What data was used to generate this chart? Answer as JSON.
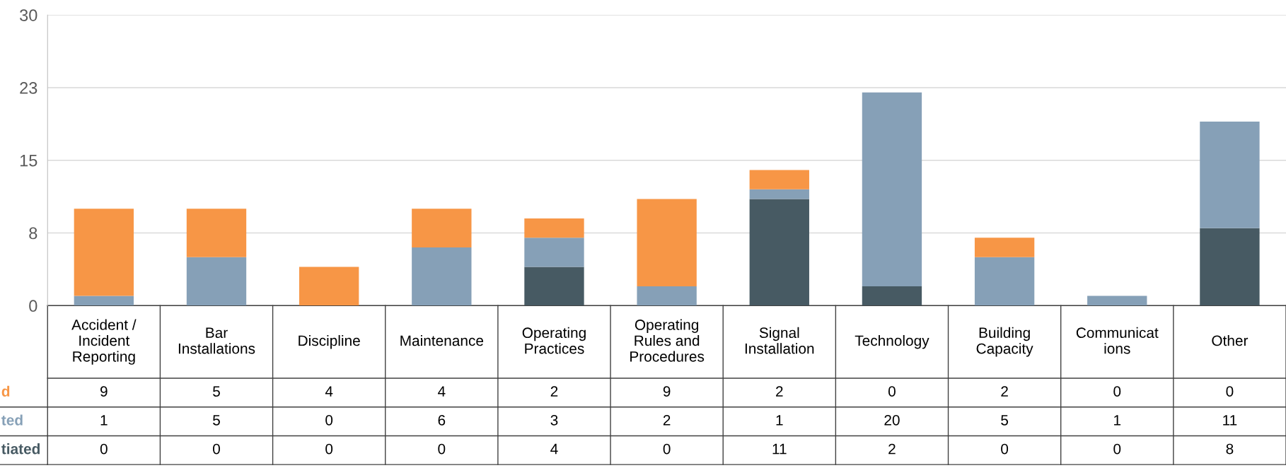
{
  "chart_data": {
    "type": "bar",
    "stacked": true,
    "data_labels": true,
    "grid": "y",
    "legend": false,
    "categories": [
      "Accident / Incident Reporting",
      "Bar Installations",
      "Discipline",
      "Maintenance",
      "Operating Practices",
      "Operating Rules and Procedures",
      "Signal Installation",
      "Technology",
      "Building Capacity",
      "Communicat ions",
      "Other"
    ],
    "series": [
      {
        "name": "tiated",
        "color": "#475a63",
        "values": [
          0,
          0,
          0,
          0,
          4,
          0,
          11,
          2,
          0,
          0,
          8
        ]
      },
      {
        "name": "ted",
        "color": "#86a0b7",
        "values": [
          1,
          5,
          0,
          6,
          3,
          2,
          1,
          20,
          5,
          1,
          11
        ]
      },
      {
        "name": "d",
        "color": "#f79646",
        "values": [
          9,
          5,
          4,
          4,
          2,
          9,
          2,
          0,
          2,
          0,
          0
        ]
      }
    ],
    "ylim": [
      0,
      30
    ],
    "yticks": [
      0,
      {
        "value": 7.5,
        "label": "8"
      },
      15,
      {
        "value": 22.5,
        "label": "23"
      },
      30
    ]
  }
}
